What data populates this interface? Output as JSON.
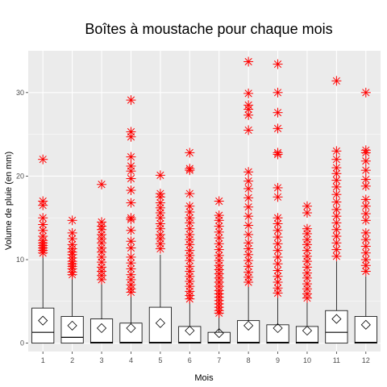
{
  "chart_data": {
    "type": "boxplot",
    "title": "Boîtes à moustache pour chaque mois",
    "xlabel": "Mois",
    "ylabel": "Volume de pluie (en mm)",
    "ylim": [
      -1,
      35
    ],
    "yticks": [
      0,
      10,
      20,
      30
    ],
    "grid": true,
    "categories": [
      "1",
      "2",
      "3",
      "4",
      "5",
      "6",
      "7",
      "8",
      "9",
      "10",
      "11",
      "12"
    ],
    "stats": [
      {
        "q1": 0,
        "median": 1.3,
        "q3": 4.2,
        "mean": 2.7,
        "whisker_low": 0,
        "whisker_high": 10.5
      },
      {
        "q1": 0,
        "median": 0.7,
        "q3": 3.2,
        "mean": 2.1,
        "whisker_low": 0,
        "whisker_high": 8.0
      },
      {
        "q1": 0,
        "median": 0.1,
        "q3": 2.9,
        "mean": 1.8,
        "whisker_low": 0,
        "whisker_high": 7.2
      },
      {
        "q1": 0,
        "median": 0.1,
        "q3": 2.4,
        "mean": 1.8,
        "whisker_low": 0,
        "whisker_high": 6.0
      },
      {
        "q1": 0,
        "median": 0.1,
        "q3": 4.3,
        "mean": 2.4,
        "whisker_low": 0,
        "whisker_high": 10.6
      },
      {
        "q1": 0,
        "median": 0.1,
        "q3": 2.0,
        "mean": 1.5,
        "whisker_low": 0,
        "whisker_high": 5.0
      },
      {
        "q1": 0,
        "median": 0.1,
        "q3": 1.3,
        "mean": 1.2,
        "whisker_low": 0,
        "whisker_high": 3.3
      },
      {
        "q1": 0,
        "median": 0.1,
        "q3": 2.7,
        "mean": 2.1,
        "whisker_low": 0,
        "whisker_high": 6.8
      },
      {
        "q1": 0,
        "median": 0.1,
        "q3": 2.2,
        "mean": 1.8,
        "whisker_low": 0,
        "whisker_high": 5.6
      },
      {
        "q1": 0,
        "median": 0.1,
        "q3": 2.0,
        "mean": 1.5,
        "whisker_low": 0,
        "whisker_high": 5.0
      },
      {
        "q1": 0,
        "median": 1.3,
        "q3": 3.9,
        "mean": 2.9,
        "whisker_low": 0,
        "whisker_high": 9.8
      },
      {
        "q1": 0,
        "median": 0.1,
        "q3": 3.2,
        "mean": 2.2,
        "whisker_low": 0,
        "whisker_high": 8.0
      }
    ],
    "outliers": [
      [
        22,
        17,
        16.5,
        15,
        14.2,
        13.5,
        12.8,
        12.3,
        12.0,
        11.7,
        11.4,
        11.1,
        10.8
      ],
      [
        14.7,
        13.2,
        12.5,
        11.8,
        11.3,
        10.9,
        10.6,
        10.2,
        9.8,
        9.5,
        9.2,
        8.9,
        8.5,
        8.2
      ],
      [
        19,
        14.5,
        14,
        13.6,
        13.0,
        12.5,
        12.0,
        11.4,
        10.9,
        10.3,
        9.7,
        9.1,
        8.6,
        8.1,
        7.6
      ],
      [
        29.1,
        25.3,
        24.7,
        22.3,
        21.2,
        20.6,
        19.7,
        18.3,
        16.8,
        15.0,
        14.8,
        13.5,
        12.2,
        11.4,
        10.3,
        9.6,
        8.9,
        8.2,
        7.6,
        7.0,
        6.5,
        6.1
      ],
      [
        20.1,
        17.9,
        17.5,
        16.8,
        16.2,
        15.6,
        15.0,
        14.3,
        13.7,
        13.0,
        12.5,
        11.9,
        11.3
      ],
      [
        22.8,
        20.9,
        20.7,
        17.9,
        16.4,
        15.7,
        15.0,
        14.4,
        13.7,
        13.0,
        12.4,
        11.8,
        11.1,
        10.5,
        9.9,
        9.2,
        8.6,
        8.0,
        7.4,
        6.8,
        6.2,
        5.7,
        5.3
      ],
      [
        17.0,
        15.3,
        14.7,
        14.0,
        13.3,
        12.6,
        11.9,
        11.2,
        10.5,
        9.9,
        9.3,
        8.8,
        8.3,
        7.8,
        7.3,
        6.8,
        6.3,
        5.9,
        5.5,
        5.1,
        4.7,
        4.3,
        3.9,
        3.6
      ],
      [
        33.7,
        29.9,
        28.5,
        28.0,
        27.3,
        25.5,
        20.5,
        19.4,
        18.5,
        17.4,
        16.3,
        15.2,
        14.1,
        13.0,
        12.0,
        11.3,
        10.6,
        9.9,
        9.2,
        8.5,
        7.9,
        7.3
      ],
      [
        33.4,
        30.0,
        27.6,
        25.7,
        22.8,
        22.6,
        18.6,
        17.5,
        15.0,
        14.3,
        13.5,
        12.7,
        11.9,
        11.1,
        10.3,
        9.5,
        8.7,
        8.0,
        7.3,
        6.6,
        6.0
      ],
      [
        16.4,
        15.6,
        13.7,
        13.1,
        12.4,
        11.8,
        11.1,
        10.4,
        9.8,
        9.1,
        8.4,
        7.8,
        7.1,
        6.5,
        5.9,
        5.4
      ],
      [
        31.4,
        23.0,
        22.0,
        21.0,
        20.3,
        19.5,
        18.7,
        17.8,
        16.9,
        16.0,
        15.2,
        14.4,
        13.6,
        12.8,
        12.0,
        11.2,
        10.4
      ],
      [
        30.0,
        23.1,
        22.8,
        21.8,
        20.7,
        19.6,
        18.8,
        17.2,
        16.4,
        15.5,
        14.7,
        13.2,
        12.4,
        11.6,
        10.8,
        10.0,
        9.3,
        8.6
      ]
    ],
    "colors": {
      "outlier": "#ff0000",
      "panel": "#ebebeb",
      "grid": "#ffffff",
      "box_stroke": "#000000",
      "box_fill": "#ffffff"
    }
  }
}
